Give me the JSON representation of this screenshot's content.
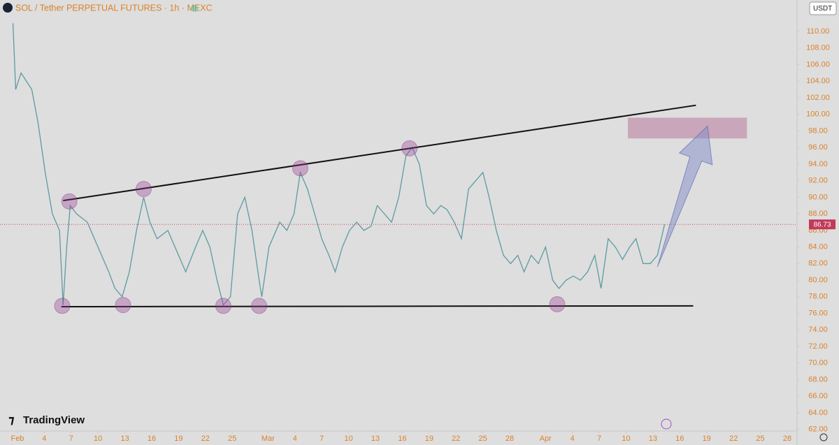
{
  "chart_data": {
    "type": "line",
    "title": "SOL / Tether PERPETUAL FUTURES · 1h · MEXC",
    "currency": "USDT",
    "branding": "TradingView",
    "color": "#5e9aa3",
    "x": [
      -0.5,
      -0.2,
      0.4,
      1.6,
      2.3,
      3.1,
      3.9,
      4.7,
      5.1,
      5.5,
      5.9,
      6.6,
      7.8,
      9.0,
      10.2,
      10.9,
      11.7,
      12.5,
      13.3,
      14.1,
      14.8,
      15.6,
      16.8,
      18.0,
      18.8,
      19.9,
      20.7,
      21.5,
      22.3,
      23.0,
      23.8,
      24.6,
      25.4,
      26.2,
      27.0,
      27.3,
      28.1,
      29.3,
      30.1,
      30.9,
      31.6,
      32.4,
      33.2,
      34.0,
      34.8,
      35.5,
      36.3,
      37.1,
      37.9,
      38.7,
      39.5,
      40.2,
      41.0,
      41.8,
      42.6,
      43.4,
      44.1,
      44.9,
      45.7,
      46.5,
      47.3,
      48.0,
      48.8,
      49.6,
      50.4,
      51.2,
      52.0,
      52.7,
      53.5,
      54.3,
      55.1,
      55.9,
      56.6,
      57.4,
      58.2,
      59.0,
      59.8,
      60.5,
      61.3,
      62.1,
      62.9,
      63.7,
      64.5,
      65.2,
      66.0,
      66.8,
      67.6,
      68.4,
      69.1,
      69.9,
      70.7,
      71.5,
      72.3
    ],
    "values": [
      111,
      103,
      105,
      103,
      99,
      93,
      88,
      86,
      77,
      84,
      89,
      88,
      87,
      84,
      81,
      79,
      78,
      81,
      86,
      90,
      87,
      85,
      86,
      83,
      81,
      84,
      86,
      84,
      80,
      77,
      78,
      88,
      90,
      86,
      80,
      78,
      84,
      87,
      86,
      88,
      93,
      91,
      88,
      85,
      83,
      81,
      84,
      86,
      87,
      86,
      86.5,
      89,
      88,
      87,
      90,
      95,
      96,
      94,
      89,
      88,
      89,
      88.5,
      87,
      85,
      91,
      92,
      93,
      90,
      86,
      83,
      82,
      83,
      81,
      83,
      82,
      84,
      80,
      79,
      80,
      80.5,
      80,
      81,
      83,
      79,
      85,
      84,
      82.5,
      84,
      85,
      82,
      82,
      83,
      86.73
    ],
    "last_price": 86.73,
    "xlim": [
      -1.95,
      87.1
    ],
    "ylim": [
      61.8,
      113.8
    ],
    "xticks": [
      {
        "value": 0,
        "label": "Feb"
      },
      {
        "value": 3,
        "label": "4"
      },
      {
        "value": 6,
        "label": "7"
      },
      {
        "value": 9,
        "label": "10"
      },
      {
        "value": 12,
        "label": "13"
      },
      {
        "value": 15,
        "label": "16"
      },
      {
        "value": 18,
        "label": "19"
      },
      {
        "value": 21,
        "label": "22"
      },
      {
        "value": 24,
        "label": "25"
      },
      {
        "value": 28,
        "label": "Mar"
      },
      {
        "value": 31,
        "label": "4"
      },
      {
        "value": 34,
        "label": "7"
      },
      {
        "value": 37,
        "label": "10"
      },
      {
        "value": 40,
        "label": "13"
      },
      {
        "value": 43,
        "label": "16"
      },
      {
        "value": 46,
        "label": "19"
      },
      {
        "value": 49,
        "label": "22"
      },
      {
        "value": 52,
        "label": "25"
      },
      {
        "value": 55,
        "label": "28"
      },
      {
        "value": 59,
        "label": "Apr"
      },
      {
        "value": 62,
        "label": "4"
      },
      {
        "value": 65,
        "label": "7"
      },
      {
        "value": 68,
        "label": "10"
      },
      {
        "value": 71,
        "label": "13"
      },
      {
        "value": 74,
        "label": "16"
      },
      {
        "value": 77,
        "label": "19"
      },
      {
        "value": 80,
        "label": "22"
      },
      {
        "value": 83,
        "label": "25"
      },
      {
        "value": 86,
        "label": "28"
      }
    ],
    "yticks": [
      {
        "value": 62,
        "label": "62.00"
      },
      {
        "value": 64,
        "label": "64.00"
      },
      {
        "value": 66,
        "label": "66.00"
      },
      {
        "value": 68,
        "label": "68.00"
      },
      {
        "value": 70,
        "label": "70.00"
      },
      {
        "value": 72,
        "label": "72.00"
      },
      {
        "value": 74,
        "label": "74.00"
      },
      {
        "value": 76,
        "label": "76.00"
      },
      {
        "value": 78,
        "label": "78.00"
      },
      {
        "value": 80,
        "label": "80.00"
      },
      {
        "value": 82,
        "label": "82.00"
      },
      {
        "value": 84,
        "label": "84.00"
      },
      {
        "value": 86,
        "label": "86.00"
      },
      {
        "value": 88,
        "label": "88.00"
      },
      {
        "value": 90,
        "label": "90.00"
      },
      {
        "value": 92,
        "label": "92.00"
      },
      {
        "value": 94,
        "label": "94.00"
      },
      {
        "value": 96,
        "label": "96.00"
      },
      {
        "value": 98,
        "label": "98.00"
      },
      {
        "value": 100,
        "label": "100.00"
      },
      {
        "value": 102,
        "label": "102.00"
      },
      {
        "value": 104,
        "label": "104.00"
      },
      {
        "value": 106,
        "label": "106.00"
      },
      {
        "value": 108,
        "label": "108.00"
      },
      {
        "value": 110,
        "label": "110.00"
      }
    ],
    "trendlines": [
      {
        "x": [
          5.1,
          75.8
        ],
        "y": [
          89.6,
          101.1
        ]
      },
      {
        "x": [
          4.9,
          75.5
        ],
        "y": [
          76.8,
          76.9
        ]
      }
    ],
    "markers": {
      "x": [
        5.8,
        14.1,
        31.6,
        43.8,
        5.0,
        11.8,
        23.0,
        27.0,
        60.3
      ],
      "y": [
        89.5,
        91.0,
        93.5,
        95.9,
        76.9,
        77.0,
        76.9,
        76.9,
        77.1
      ]
    },
    "target_zone": {
      "xlim": [
        68.2,
        81.5
      ],
      "ylim": [
        97.1,
        99.6
      ]
    },
    "arrow": {
      "x": [
        71.5,
        77.1
      ],
      "y": [
        81.6,
        98.6
      ]
    }
  }
}
